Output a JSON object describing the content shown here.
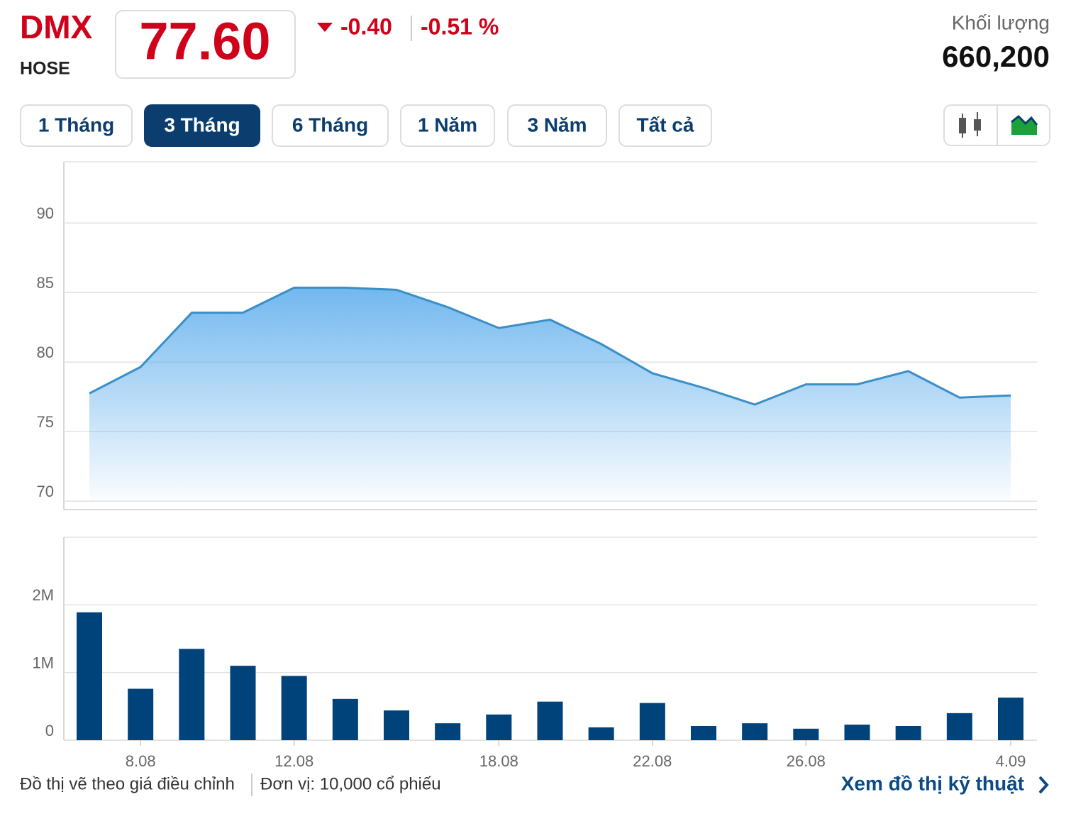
{
  "header": {
    "ticker": "DMX",
    "exchange": "HOSE",
    "price": "77.60",
    "change": "-0.40",
    "change_percent": "-0.51 %",
    "volume_label": "Khối lượng",
    "volume": "660,200"
  },
  "tabs": {
    "items": [
      "1 Tháng",
      "3 Tháng",
      "6 Tháng",
      "1 Năm",
      "3 Năm",
      "Tất cả"
    ],
    "active": 1
  },
  "chart_data": [
    {
      "type": "area",
      "color": "#3a8fc6",
      "fill_color": "#6ab4ee",
      "values": [
        77.75,
        79.65,
        83.55,
        83.55,
        85.35,
        85.35,
        85.2,
        83.95,
        82.45,
        83.05,
        81.3,
        79.2,
        78.15,
        76.95,
        78.4,
        78.4,
        79.35,
        77.45,
        77.6
      ],
      "ylim": [
        69.4,
        94.4
      ],
      "yticks": [
        70,
        75,
        80,
        85,
        90
      ],
      "grid": true
    },
    {
      "type": "bar",
      "color": "#00427a",
      "categories": [
        null,
        "8.08",
        null,
        null,
        "12.08",
        null,
        null,
        null,
        "18.08",
        null,
        null,
        "22.08",
        null,
        null,
        "26.08",
        null,
        null,
        null,
        "4.09"
      ],
      "values": [
        1890000,
        760000,
        1350000,
        1100000,
        950000,
        610000,
        440000,
        250000,
        380000,
        570000,
        190000,
        550000,
        210000,
        250000,
        170000,
        230000,
        210000,
        400000,
        630000
      ],
      "ylim": [
        0,
        3000000
      ],
      "yticks": [
        0,
        {
          "value": 1000000,
          "label": "1M"
        },
        {
          "value": 2000000,
          "label": "2M"
        }
      ],
      "grid": true
    }
  ],
  "footer": {
    "note": "Đồ thị vẽ theo giá điều chỉnh",
    "unit": "Đơn vị: 10,000 cổ phiếu",
    "link": "Xem đồ thị kỹ thuật"
  }
}
